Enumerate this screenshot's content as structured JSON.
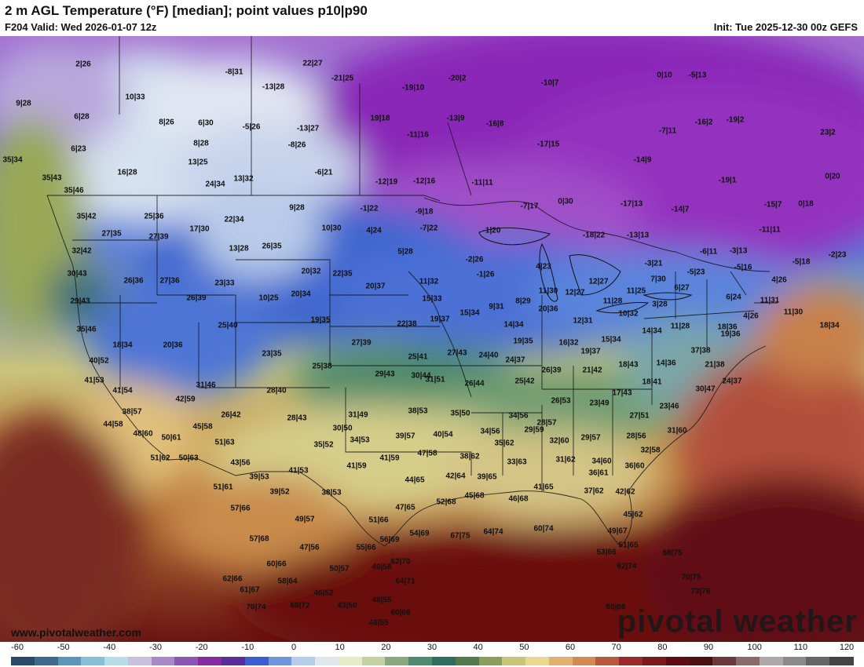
{
  "header": {
    "title": "2 m AGL Temperature (°F) [median]; point values p10|p90",
    "valid": "F204 Valid: Wed 2026-01-07 12z",
    "init": "Init: Tue 2025-12-30 00z GEFS"
  },
  "watermark": "pivotal weather",
  "site": "www.pivotalweather.com",
  "legend": {
    "ticks": [
      "-60",
      "-50",
      "-40",
      "-30",
      "-20",
      "-10",
      "0",
      "10",
      "20",
      "30",
      "40",
      "50",
      "60",
      "70",
      "80",
      "90",
      "100",
      "110",
      "120"
    ],
    "colors": [
      "#2a4a6a",
      "#3d6a8a",
      "#5a96b8",
      "#86c0d6",
      "#b8dde6",
      "#c9c0de",
      "#a988c8",
      "#8a58b4",
      "#8a2aa0",
      "#5b2d9a",
      "#3a5ecf",
      "#6f96d8",
      "#b6cde8",
      "#dfe6ec",
      "#e7ecc6",
      "#c2d2a0",
      "#8aa87e",
      "#4e8a6e",
      "#2d6e5e",
      "#527a4e",
      "#8a9e5a",
      "#c8c478",
      "#e8d890",
      "#e2b070",
      "#d18a52",
      "#b85a3a",
      "#9a2a2a",
      "#7a1a1a",
      "#5e0e12",
      "#4a1010",
      "#6a3a3a",
      "#8a6a6a",
      "#b0a8a8",
      "#8a8a8a",
      "#666",
      "#444"
    ]
  },
  "points": [
    {
      "t": "2|26"
    },
    {
      "t": "-8|31"
    },
    {
      "t": "22|27"
    },
    {
      "t": "-21|25"
    },
    {
      "t": "-20|2"
    },
    {
      "t": "-10|7"
    },
    {
      "t": "0|10"
    },
    {
      "t": "-5|13"
    },
    {
      "t": "9|28"
    },
    {
      "t": "10|33"
    },
    {
      "t": "-13|28"
    },
    {
      "t": "-19|10"
    },
    {
      "t": "6|28"
    },
    {
      "t": "8|26"
    },
    {
      "t": "6|30"
    },
    {
      "t": "-5|26"
    },
    {
      "t": "-13|27"
    },
    {
      "t": "19|18"
    },
    {
      "t": "-13|9"
    },
    {
      "t": "-16|8"
    },
    {
      "t": "-7|11"
    },
    {
      "t": "-16|2"
    },
    {
      "t": "-19|2"
    },
    {
      "t": "23|2"
    },
    {
      "t": "6|23"
    },
    {
      "t": "8|28"
    },
    {
      "t": "-8|26"
    },
    {
      "t": "-11|16"
    },
    {
      "t": "-17|15"
    },
    {
      "t": "35|34"
    },
    {
      "t": "13|25"
    },
    {
      "t": "-14|9"
    },
    {
      "t": "16|28"
    },
    {
      "t": "-6|21"
    },
    {
      "t": "-19|1"
    },
    {
      "t": "0|20"
    },
    {
      "t": "35|43"
    },
    {
      "t": "24|34"
    },
    {
      "t": "13|32"
    },
    {
      "t": "-12|19"
    },
    {
      "t": "-12|16"
    },
    {
      "t": "-11|11"
    },
    {
      "t": "35|46"
    },
    {
      "t": "-7|17"
    },
    {
      "t": "0|30"
    },
    {
      "t": "-17|13"
    },
    {
      "t": "-14|7"
    },
    {
      "t": "-15|7"
    },
    {
      "t": "0|18"
    },
    {
      "t": "35|42"
    },
    {
      "t": "25|36"
    },
    {
      "t": "22|34"
    },
    {
      "t": "9|28"
    },
    {
      "t": "-1|22"
    },
    {
      "t": "-9|18"
    },
    {
      "t": "17|30"
    },
    {
      "t": "10|30"
    },
    {
      "t": "4|24"
    },
    {
      "t": "-7|22"
    },
    {
      "t": "-1|20"
    },
    {
      "t": "-18|22"
    },
    {
      "t": "-13|13"
    },
    {
      "t": "-11|11"
    },
    {
      "t": "27|35"
    },
    {
      "t": "27|39"
    },
    {
      "t": "13|28"
    },
    {
      "t": "26|35"
    },
    {
      "t": "5|28"
    },
    {
      "t": "-2|26"
    },
    {
      "t": "-6|11"
    },
    {
      "t": "-3|13"
    },
    {
      "t": "-2|23"
    },
    {
      "t": "32|42"
    },
    {
      "t": "4|23"
    },
    {
      "t": "-3|21"
    },
    {
      "t": "-5|18"
    },
    {
      "t": "30|43"
    },
    {
      "t": "20|32"
    },
    {
      "t": "22|35"
    },
    {
      "t": "-1|26"
    },
    {
      "t": "-5|23"
    },
    {
      "t": "-5|16"
    },
    {
      "t": "26|36"
    },
    {
      "t": "27|36"
    },
    {
      "t": "23|33"
    },
    {
      "t": "20|37"
    },
    {
      "t": "11|32"
    },
    {
      "t": "12|27"
    },
    {
      "t": "7|30"
    },
    {
      "t": "4|26"
    },
    {
      "t": "11|30"
    },
    {
      "t": "12|27"
    },
    {
      "t": "11|25"
    },
    {
      "t": "6|27"
    },
    {
      "t": "29|43"
    },
    {
      "t": "26|39"
    },
    {
      "t": "10|25"
    },
    {
      "t": "20|34"
    },
    {
      "t": "15|33"
    },
    {
      "t": "8|29"
    },
    {
      "t": "11|28"
    },
    {
      "t": "3|28"
    },
    {
      "t": "6|24"
    },
    {
      "t": "11|31"
    },
    {
      "t": "9|31"
    },
    {
      "t": "15|34"
    },
    {
      "t": "20|36"
    },
    {
      "t": "10|32"
    },
    {
      "t": "11|30"
    },
    {
      "t": "4|26"
    },
    {
      "t": "35|46"
    },
    {
      "t": "25|40"
    },
    {
      "t": "19|35"
    },
    {
      "t": "22|38"
    },
    {
      "t": "19|37"
    },
    {
      "t": "14|34"
    },
    {
      "t": "12|31"
    },
    {
      "t": "11|28"
    },
    {
      "t": "18|36"
    },
    {
      "t": "18|34"
    },
    {
      "t": "18|34"
    },
    {
      "t": "20|36"
    },
    {
      "t": "27|39"
    },
    {
      "t": "19|35"
    },
    {
      "t": "16|32"
    },
    {
      "t": "15|34"
    },
    {
      "t": "14|34"
    },
    {
      "t": "19|36"
    },
    {
      "t": "23|35"
    },
    {
      "t": "25|41"
    },
    {
      "t": "27|43"
    },
    {
      "t": "24|40"
    },
    {
      "t": "24|37"
    },
    {
      "t": "19|37"
    },
    {
      "t": "37|38"
    },
    {
      "t": "40|52"
    },
    {
      "t": "25|38"
    },
    {
      "t": "29|43"
    },
    {
      "t": "30|44"
    },
    {
      "t": "26|39"
    },
    {
      "t": "21|42"
    },
    {
      "t": "18|43"
    },
    {
      "t": "14|36"
    },
    {
      "t": "21|38"
    },
    {
      "t": "41|53"
    },
    {
      "t": "31|46"
    },
    {
      "t": "26|44"
    },
    {
      "t": "25|42"
    },
    {
      "t": "24|37"
    },
    {
      "t": "41|54"
    },
    {
      "t": "28|40"
    },
    {
      "t": "31|51"
    },
    {
      "t": "18|41"
    },
    {
      "t": "30|47"
    },
    {
      "t": "42|59"
    },
    {
      "t": "26|53"
    },
    {
      "t": "17|43"
    },
    {
      "t": "23|49"
    },
    {
      "t": "38|57"
    },
    {
      "t": "26|42"
    },
    {
      "t": "28|43"
    },
    {
      "t": "31|49"
    },
    {
      "t": "38|53"
    },
    {
      "t": "35|50"
    },
    {
      "t": "34|56"
    },
    {
      "t": "23|46"
    },
    {
      "t": "44|58"
    },
    {
      "t": "45|58"
    },
    {
      "t": "30|50"
    },
    {
      "t": "40|54"
    },
    {
      "t": "34|56"
    },
    {
      "t": "28|57"
    },
    {
      "t": "27|51"
    },
    {
      "t": "48|60"
    },
    {
      "t": "50|61"
    },
    {
      "t": "39|57"
    },
    {
      "t": "29|59"
    },
    {
      "t": "29|57"
    },
    {
      "t": "28|56"
    },
    {
      "t": "31|60"
    },
    {
      "t": "51|63"
    },
    {
      "t": "35|52"
    },
    {
      "t": "34|53"
    },
    {
      "t": "47|58"
    },
    {
      "t": "35|62"
    },
    {
      "t": "32|60"
    },
    {
      "t": "51|62"
    },
    {
      "t": "50|63"
    },
    {
      "t": "43|56"
    },
    {
      "t": "41|59"
    },
    {
      "t": "38|62"
    },
    {
      "t": "32|58"
    },
    {
      "t": "41|53"
    },
    {
      "t": "41|59"
    },
    {
      "t": "33|63"
    },
    {
      "t": "31|62"
    },
    {
      "t": "34|60"
    },
    {
      "t": "39|53"
    },
    {
      "t": "44|65"
    },
    {
      "t": "36|61"
    },
    {
      "t": "36|60"
    },
    {
      "t": "51|61"
    },
    {
      "t": "39|52"
    },
    {
      "t": "38|53"
    },
    {
      "t": "42|64"
    },
    {
      "t": "39|65"
    },
    {
      "t": "45|68"
    },
    {
      "t": "46|68"
    },
    {
      "t": "41|65"
    },
    {
      "t": "37|62"
    },
    {
      "t": "42|62"
    },
    {
      "t": "57|66"
    },
    {
      "t": "47|65"
    },
    {
      "t": "52|68"
    },
    {
      "t": "45|62"
    },
    {
      "t": "49|57"
    },
    {
      "t": "51|66"
    },
    {
      "t": "60|74"
    },
    {
      "t": "57|68"
    },
    {
      "t": "47|56"
    },
    {
      "t": "56|69"
    },
    {
      "t": "54|69"
    },
    {
      "t": "67|75"
    },
    {
      "t": "64|74"
    },
    {
      "t": "49|67"
    },
    {
      "t": "55|66"
    },
    {
      "t": "51|65"
    },
    {
      "t": "60|66"
    },
    {
      "t": "53|66"
    },
    {
      "t": "68|75"
    },
    {
      "t": "50|57"
    },
    {
      "t": "49|58"
    },
    {
      "t": "62|70"
    },
    {
      "t": "62|74"
    },
    {
      "t": "62|66"
    },
    {
      "t": "58|64"
    },
    {
      "t": "64|71"
    },
    {
      "t": "70|75"
    },
    {
      "t": "61|67"
    },
    {
      "t": "46|52"
    },
    {
      "t": "48|55"
    },
    {
      "t": "73|76"
    },
    {
      "t": "70|74"
    },
    {
      "t": "69|72"
    },
    {
      "t": "43|50"
    },
    {
      "t": "60|66"
    },
    {
      "t": "60|66"
    },
    {
      "t": "46|55"
    }
  ]
}
